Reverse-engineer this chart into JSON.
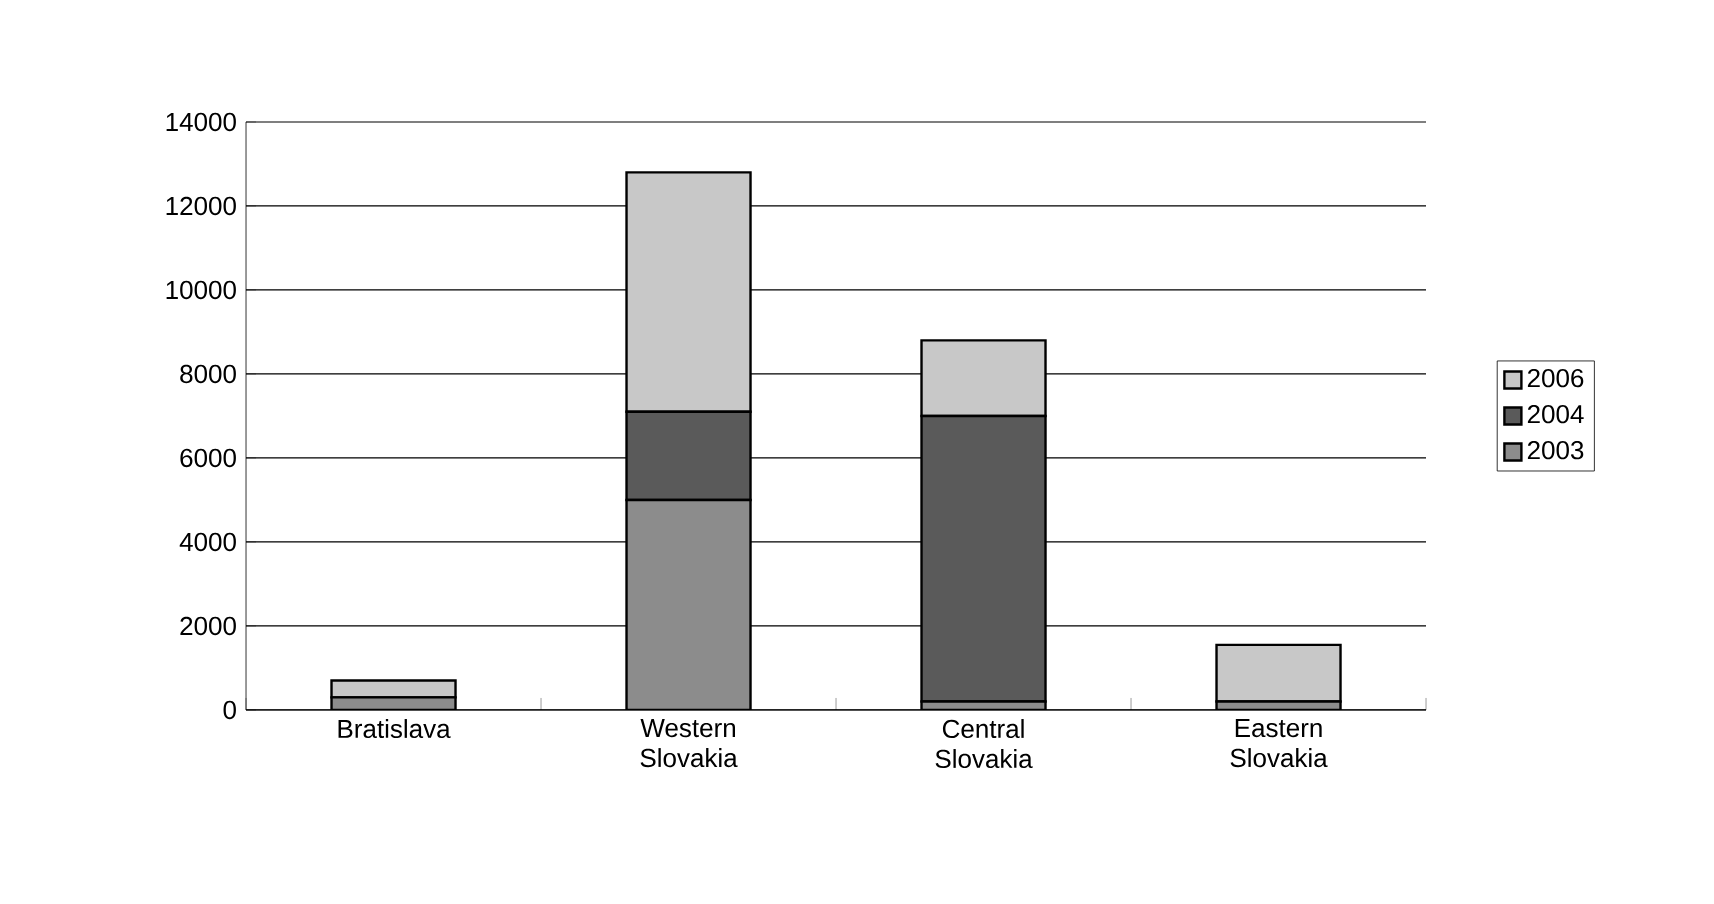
{
  "chart_data": {
    "type": "bar",
    "stacked": true,
    "categories": [
      "Bratislava",
      "Western Slovakia",
      "Central Slovakia",
      "Eastern Slovakia"
    ],
    "series": [
      {
        "name": "2003",
        "color": "#8c8c8c",
        "values": [
          300,
          5000,
          200,
          200
        ]
      },
      {
        "name": "2004",
        "color": "#5a5a5a",
        "values": [
          0,
          2100,
          6800,
          0
        ]
      },
      {
        "name": "2006",
        "color": "#c8c8c8",
        "values": [
          400,
          5700,
          1800,
          1350
        ]
      }
    ],
    "ylim": [
      0,
      14000
    ],
    "yticks": [
      0,
      2000,
      4000,
      6000,
      8000,
      10000,
      12000,
      14000
    ],
    "grid": "y",
    "legend": "right"
  }
}
